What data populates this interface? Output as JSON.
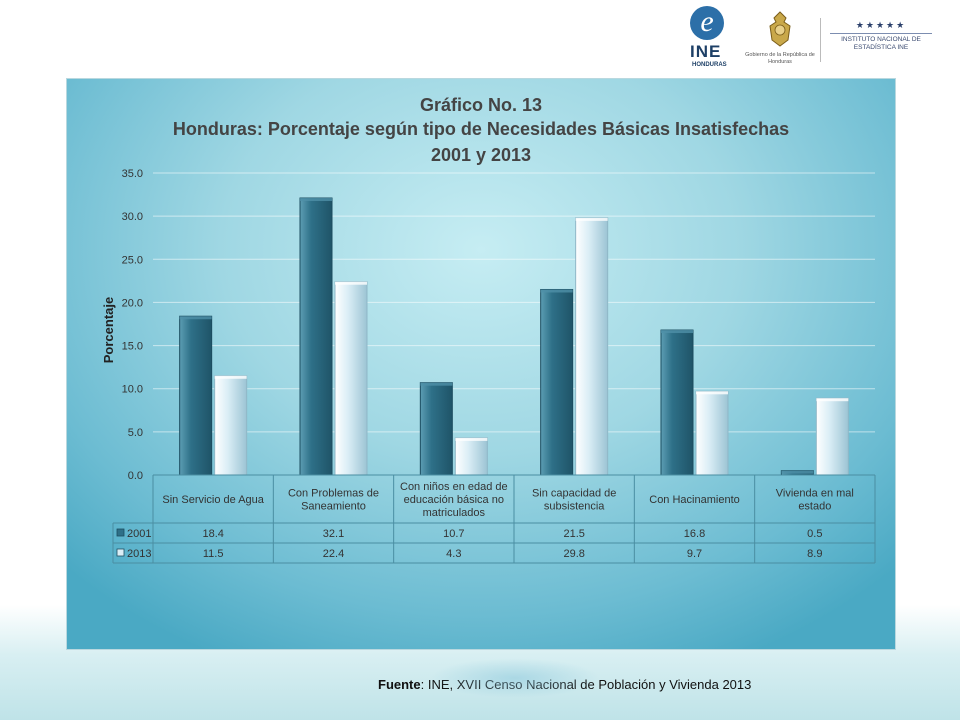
{
  "header": {
    "ine_letter": "e",
    "ine_name": "INE",
    "ine_country": "HONDURAS",
    "seal_caption": "Gobierno de la República de Honduras",
    "institute_stars": "★★★★★",
    "institute_name": "INSTITUTO NACIONAL DE ESTADÍSTICA INE"
  },
  "chart_data": {
    "type": "bar",
    "title_line1": "Gráfico No. 13",
    "title_line2": "Honduras: Porcentaje según tipo de Necesidades Básicas Insatisfechas",
    "title_line3": "2001 y 2013",
    "ylabel": "Porcentaje",
    "ylim": [
      0,
      35
    ],
    "yticks": [
      "0.0",
      "5.0",
      "10.0",
      "15.0",
      "20.0",
      "25.0",
      "30.0",
      "35.0"
    ],
    "categories": [
      [
        "Sin Servicio de Agua"
      ],
      [
        "Con Problemas de",
        "Saneamiento"
      ],
      [
        "Con niños en edad de",
        "educación básica no",
        "matriculados"
      ],
      [
        "Sin capacidad de",
        "subsistencia"
      ],
      [
        "Con Hacinamiento"
      ],
      [
        "Vivienda en mal",
        "estado"
      ]
    ],
    "series": [
      {
        "name": "2001",
        "values": [
          18.4,
          32.1,
          10.7,
          21.5,
          16.8,
          0.5
        ],
        "labels": [
          "18.4",
          "32.1",
          "10.7",
          "21.5",
          "16.8",
          "0.5"
        ],
        "color": "#2e7088"
      },
      {
        "name": "2013",
        "values": [
          11.5,
          22.4,
          4.3,
          29.8,
          9.7,
          8.9
        ],
        "labels": [
          "11.5",
          "22.4",
          "4.3",
          "29.8",
          "9.7",
          "8.9"
        ],
        "color": "#dbeef6"
      }
    ],
    "grid": true,
    "legend": "data-table"
  },
  "source": {
    "label": "Fuente",
    "text": ": INE, XVII Censo Nacional de Población y Vivienda 2013"
  }
}
